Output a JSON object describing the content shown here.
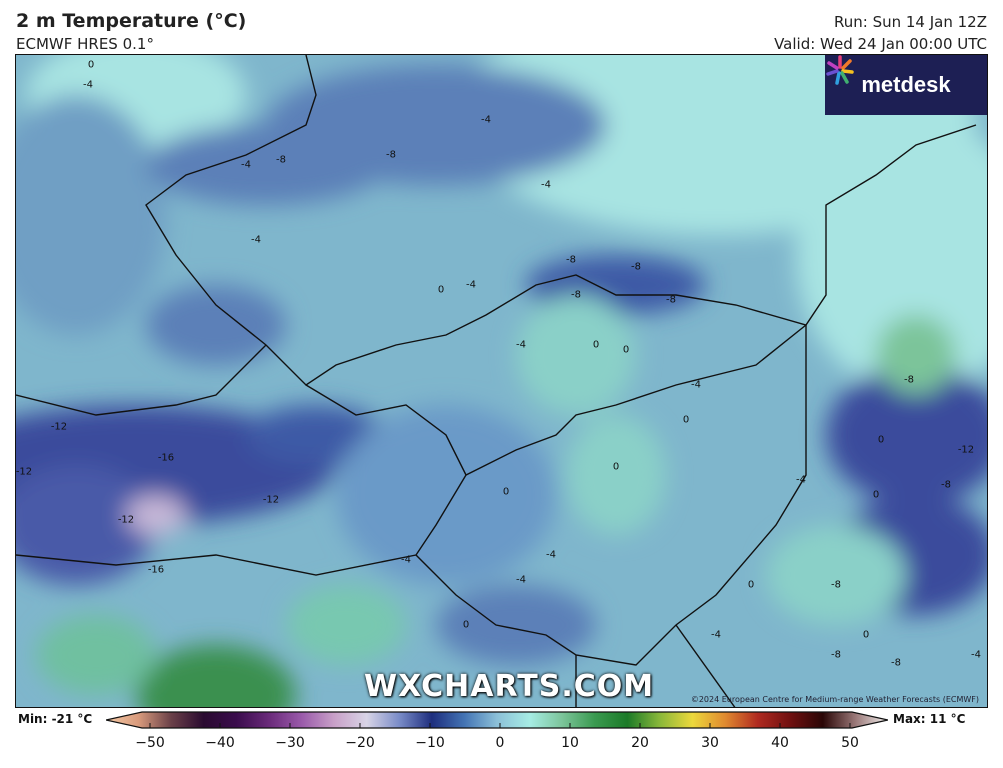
{
  "header": {
    "title": "2 m Temperature (°C)",
    "model": "ECMWF HRES 0.1°",
    "run": "Run: Sun 14 Jan 12Z",
    "valid": "Valid: Wed 24 Jan 00:00 UTC"
  },
  "map": {
    "logo": "metdesk",
    "watermark": "WXCHARTS.COM",
    "copyright": "©2024 European Centre for Medium-range Weather Forecasts (ECMWF)",
    "contour_labels": [
      "0",
      "-4",
      "-4",
      "-8",
      "-8",
      "-4",
      "-4",
      "-4",
      "-8",
      "-8",
      "-4",
      "0",
      "-4",
      "-8",
      "-8",
      "-4",
      "0",
      "0",
      "-12",
      "-16",
      "-12",
      "-12",
      "-16",
      "-12",
      "-8",
      "0",
      "0",
      "-4",
      "0",
      "-8",
      "-12",
      "-8",
      "-4",
      "0",
      "0",
      "-4",
      "-4",
      "0",
      "-8",
      "-4",
      "0",
      "-4",
      "-8",
      "0"
    ]
  },
  "colorbar": {
    "min_label": "Min: -21 °C",
    "max_label": "Max: 11 °C",
    "ticks": [
      "−50",
      "−40",
      "−30",
      "−20",
      "−10",
      "0",
      "10",
      "20",
      "30",
      "40",
      "50"
    ],
    "range": [
      -50,
      50
    ],
    "colors": [
      "#f5c9a4",
      "#d89a7c",
      "#6a4048",
      "#2a0a30",
      "#3a0c4c",
      "#6a2a7a",
      "#9a5aaa",
      "#c8a0c8",
      "#d8d4e6",
      "#7a8cc8",
      "#1e2e7e",
      "#4474b4",
      "#8cc0d8",
      "#a6ece4",
      "#7cc49a",
      "#3a9a50",
      "#1c7a28",
      "#8ab83a",
      "#ecd83c",
      "#e08a30",
      "#b02a20",
      "#701010",
      "#2a0606",
      "#9a7878",
      "#f2f0ee"
    ],
    "unit": "°C"
  }
}
